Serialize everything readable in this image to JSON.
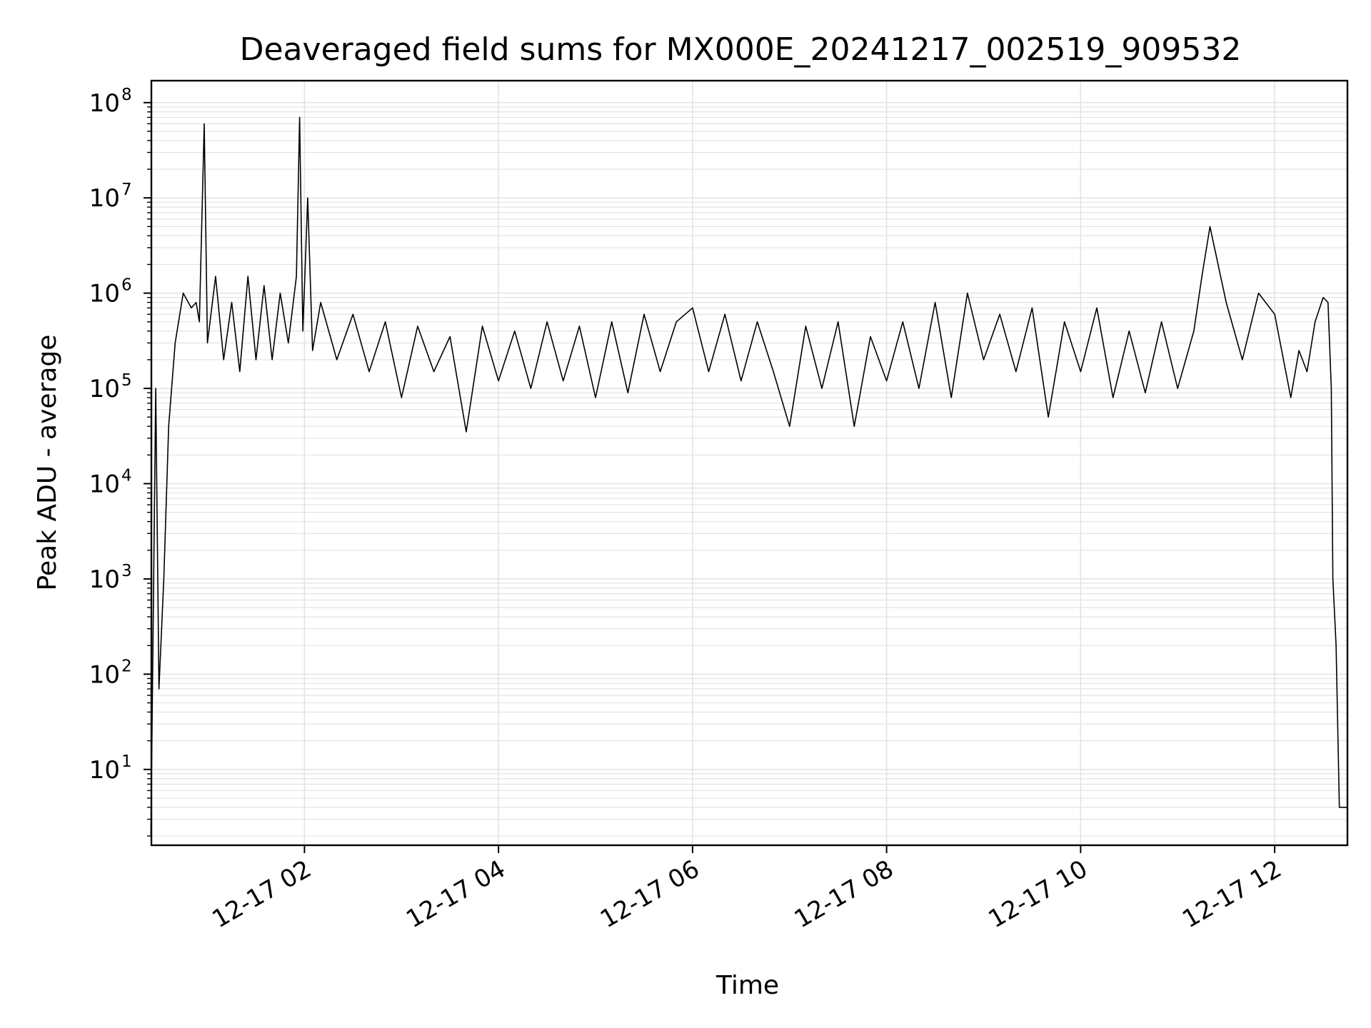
{
  "chart_data": {
    "type": "line",
    "title": "Deaveraged field sums for MX000E_20241217_002519_909532",
    "xlabel": "Time",
    "ylabel": "Peak ADU - average",
    "yscale": "log",
    "ylim": [
      1.6,
      170000000
    ],
    "xlim": [
      "2024-12-17 00:25:19",
      "2024-12-17 12:45:00"
    ],
    "grid": true,
    "legend": "none",
    "line_color": "#000000",
    "grid_color": "#e3e3e3",
    "x_ticks": [
      {
        "label": "12-17 02",
        "value": "2024-12-17 02:00"
      },
      {
        "label": "12-17 04",
        "value": "2024-12-17 04:00"
      },
      {
        "label": "12-17 06",
        "value": "2024-12-17 06:00"
      },
      {
        "label": "12-17 08",
        "value": "2024-12-17 08:00"
      },
      {
        "label": "12-17 10",
        "value": "2024-12-17 10:00"
      },
      {
        "label": "12-17 12",
        "value": "2024-12-17 12:00"
      }
    ],
    "y_ticks": [
      {
        "base": "10",
        "exp": "1",
        "value": 10
      },
      {
        "base": "10",
        "exp": "2",
        "value": 100
      },
      {
        "base": "10",
        "exp": "3",
        "value": 1000
      },
      {
        "base": "10",
        "exp": "4",
        "value": 10000
      },
      {
        "base": "10",
        "exp": "5",
        "value": 100000
      },
      {
        "base": "10",
        "exp": "6",
        "value": 1000000
      },
      {
        "base": "10",
        "exp": "7",
        "value": 10000000
      },
      {
        "base": "10",
        "exp": "8",
        "value": 100000000
      }
    ],
    "series": [
      {
        "x": [
          "2024-12-17 00:25",
          "2024-12-17 00:28",
          "2024-12-17 00:30",
          "2024-12-17 00:33",
          "2024-12-17 00:36",
          "2024-12-17 00:40",
          "2024-12-17 00:45",
          "2024-12-17 00:50",
          "2024-12-17 00:53",
          "2024-12-17 00:55",
          "2024-12-17 00:58",
          "2024-12-17 01:00",
          "2024-12-17 01:05",
          "2024-12-17 01:10",
          "2024-12-17 01:15",
          "2024-12-17 01:20",
          "2024-12-17 01:25",
          "2024-12-17 01:30",
          "2024-12-17 01:35",
          "2024-12-17 01:40",
          "2024-12-17 01:45",
          "2024-12-17 01:50",
          "2024-12-17 01:55",
          "2024-12-17 01:57",
          "2024-12-17 01:59",
          "2024-12-17 02:02",
          "2024-12-17 02:05",
          "2024-12-17 02:10",
          "2024-12-17 02:20",
          "2024-12-17 02:30",
          "2024-12-17 02:40",
          "2024-12-17 02:50",
          "2024-12-17 03:00",
          "2024-12-17 03:10",
          "2024-12-17 03:20",
          "2024-12-17 03:30",
          "2024-12-17 03:40",
          "2024-12-17 03:50",
          "2024-12-17 04:00",
          "2024-12-17 04:10",
          "2024-12-17 04:20",
          "2024-12-17 04:30",
          "2024-12-17 04:40",
          "2024-12-17 04:50",
          "2024-12-17 05:00",
          "2024-12-17 05:10",
          "2024-12-17 05:20",
          "2024-12-17 05:30",
          "2024-12-17 05:40",
          "2024-12-17 05:50",
          "2024-12-17 06:00",
          "2024-12-17 06:10",
          "2024-12-17 06:20",
          "2024-12-17 06:30",
          "2024-12-17 06:40",
          "2024-12-17 06:50",
          "2024-12-17 07:00",
          "2024-12-17 07:10",
          "2024-12-17 07:20",
          "2024-12-17 07:30",
          "2024-12-17 07:40",
          "2024-12-17 07:50",
          "2024-12-17 08:00",
          "2024-12-17 08:10",
          "2024-12-17 08:20",
          "2024-12-17 08:30",
          "2024-12-17 08:40",
          "2024-12-17 08:50",
          "2024-12-17 09:00",
          "2024-12-17 09:10",
          "2024-12-17 09:20",
          "2024-12-17 09:30",
          "2024-12-17 09:40",
          "2024-12-17 09:50",
          "2024-12-17 10:00",
          "2024-12-17 10:10",
          "2024-12-17 10:20",
          "2024-12-17 10:30",
          "2024-12-17 10:40",
          "2024-12-17 10:50",
          "2024-12-17 11:00",
          "2024-12-17 11:10",
          "2024-12-17 11:15",
          "2024-12-17 11:20",
          "2024-12-17 11:30",
          "2024-12-17 11:40",
          "2024-12-17 11:50",
          "2024-12-17 12:00",
          "2024-12-17 12:10",
          "2024-12-17 12:15",
          "2024-12-17 12:20",
          "2024-12-17 12:25",
          "2024-12-17 12:30",
          "2024-12-17 12:33",
          "2024-12-17 12:35",
          "2024-12-17 12:36",
          "2024-12-17 12:38",
          "2024-12-17 12:40",
          "2024-12-17 12:45"
        ],
        "y": [
          2,
          100000,
          70,
          1000,
          40000,
          300000,
          1000000,
          700000,
          800000,
          500000,
          60000000,
          300000,
          1500000,
          200000,
          800000,
          150000,
          1500000,
          200000,
          1200000,
          200000,
          1000000,
          300000,
          1500000,
          70000000,
          400000,
          10000000,
          250000,
          800000,
          200000,
          600000,
          150000,
          500000,
          80000,
          450000,
          150000,
          350000,
          35000,
          450000,
          120000,
          400000,
          100000,
          500000,
          120000,
          450000,
          80000,
          500000,
          90000,
          600000,
          150000,
          500000,
          700000,
          150000,
          600000,
          120000,
          500000,
          150000,
          40000,
          450000,
          100000,
          500000,
          40000,
          350000,
          120000,
          500000,
          100000,
          800000,
          80000,
          1000000,
          200000,
          600000,
          150000,
          700000,
          50000,
          500000,
          150000,
          700000,
          80000,
          400000,
          90000,
          500000,
          100000,
          400000,
          1500000,
          5000000,
          800000,
          200000,
          1000000,
          600000,
          80000,
          250000,
          150000,
          500000,
          900000,
          800000,
          100000,
          1000,
          200,
          4,
          4
        ]
      }
    ]
  }
}
